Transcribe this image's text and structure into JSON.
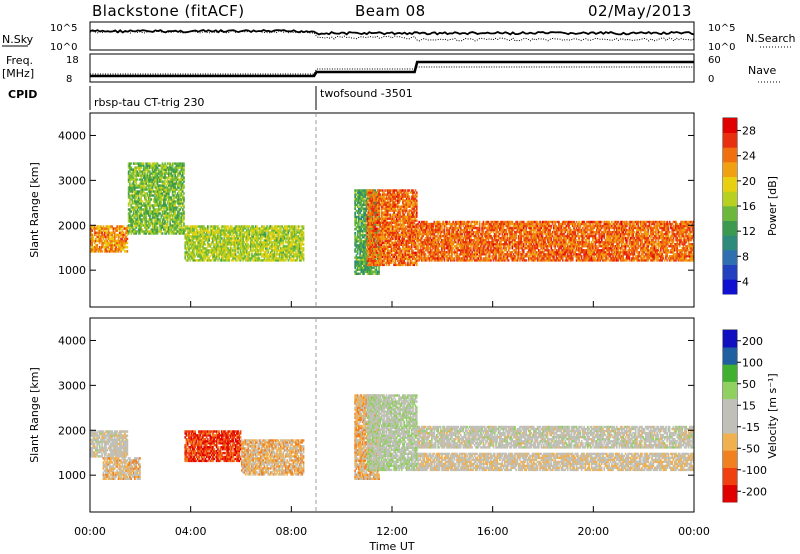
{
  "header": {
    "station": "Blackstone (fitACF)",
    "beam": "Beam 08",
    "date": "02/May/2013"
  },
  "top_panels": {
    "nsky_label": "N.Sky",
    "nsearch_label": "N.Search",
    "noise_ticks": [
      "10^5",
      "10^0"
    ],
    "freq_label_1": "Freq.",
    "freq_label_2": "[MHz]",
    "freq_ticks": [
      "18",
      "8"
    ],
    "nave_label": "Nave",
    "nave_ticks": [
      "60",
      "0"
    ],
    "cpid_label": "CPID",
    "programs": [
      {
        "name": "rbsp-tau CT-trig 230",
        "start": "00:00"
      },
      {
        "name": "twofsound -3501",
        "start": "09:00"
      }
    ]
  },
  "x_axis": {
    "label": "Time UT",
    "ticks": [
      "00:00",
      "04:00",
      "08:00",
      "12:00",
      "16:00",
      "20:00",
      "00:00"
    ]
  },
  "chart_data": [
    {
      "type": "heatmap",
      "title": "",
      "xlabel": "Time UT",
      "ylabel": "Slant Range [km]",
      "x_range_hours": [
        0,
        24
      ],
      "ylim": [
        180,
        4500
      ],
      "y_ticks": [
        "4000",
        "3000",
        "2000",
        "1000"
      ],
      "colorbar": {
        "label": "Power [dB]",
        "tick_labels": [
          "28",
          "24",
          "20",
          "16",
          "12",
          "8",
          "4"
        ],
        "range": [
          0,
          30
        ],
        "colors": [
          "#1010d0",
          "#2340c0",
          "#2f6fb0",
          "#2e8a7a",
          "#3c9a50",
          "#6cb83c",
          "#b8d020",
          "#e8d010",
          "#f0a010",
          "#f07010",
          "#e83010",
          "#e00000"
        ]
      },
      "series": [
        {
          "time_range": [
            "00:00",
            "01:30"
          ],
          "range_km": [
            1400,
            2000
          ],
          "typical_value": 22
        },
        {
          "time_range": [
            "01:30",
            "03:45"
          ],
          "range_km": [
            1800,
            3400
          ],
          "typical_value": 14
        },
        {
          "time_range": [
            "03:45",
            "08:30"
          ],
          "range_km": [
            1200,
            2000
          ],
          "typical_value": 16
        },
        {
          "time_range": [
            "10:30",
            "11:30"
          ],
          "range_km": [
            900,
            2800
          ],
          "typical_value": 12
        },
        {
          "time_range": [
            "11:00",
            "13:00"
          ],
          "range_km": [
            1100,
            2800
          ],
          "typical_value": 24
        },
        {
          "time_range": [
            "13:00",
            "24:00"
          ],
          "range_km": [
            1200,
            2100
          ],
          "typical_value": 24
        }
      ]
    },
    {
      "type": "heatmap",
      "title": "",
      "xlabel": "Time UT",
      "ylabel": "Slant Range [km]",
      "x_range_hours": [
        0,
        24
      ],
      "ylim": [
        180,
        4500
      ],
      "y_ticks": [
        "4000",
        "3000",
        "2000",
        "1000"
      ],
      "colorbar": {
        "label": "Velocity [m s⁻¹]",
        "tick_labels": [
          "200",
          "100",
          "50",
          "15",
          "-15",
          "-50",
          "-100",
          "-200"
        ],
        "range": [
          -250,
          250
        ],
        "colors": [
          "#e00000",
          "#f04010",
          "#f08020",
          "#f0b050",
          "#c0c0b8",
          "#c0c0b8",
          "#90d060",
          "#40b030",
          "#2060a0",
          "#1010c0"
        ]
      },
      "series": [
        {
          "time_range": [
            "00:00",
            "01:30"
          ],
          "range_km": [
            1400,
            2000
          ],
          "typical_value": -5
        },
        {
          "time_range": [
            "00:30",
            "02:00"
          ],
          "range_km": [
            900,
            1400
          ],
          "typical_value": -60
        },
        {
          "time_range": [
            "03:45",
            "06:00"
          ],
          "range_km": [
            1300,
            2000
          ],
          "typical_value": -180
        },
        {
          "time_range": [
            "06:00",
            "08:30"
          ],
          "range_km": [
            1000,
            1800
          ],
          "typical_value": -70
        },
        {
          "time_range": [
            "10:30",
            "11:30"
          ],
          "range_km": [
            900,
            2800
          ],
          "typical_value": -80
        },
        {
          "time_range": [
            "11:00",
            "13:00"
          ],
          "range_km": [
            1100,
            2800
          ],
          "typical_value": 30
        },
        {
          "time_range": [
            "13:00",
            "24:00"
          ],
          "range_km": [
            1600,
            2100
          ],
          "typical_value": 0
        },
        {
          "time_range": [
            "13:00",
            "24:00"
          ],
          "range_km": [
            1100,
            1500
          ],
          "typical_value": -30
        }
      ]
    }
  ]
}
